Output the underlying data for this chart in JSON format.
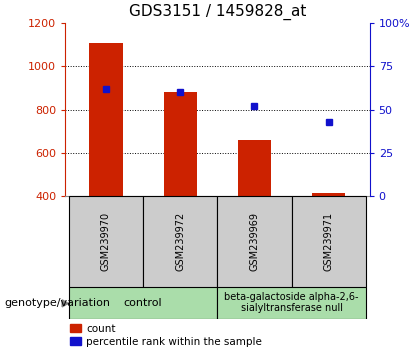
{
  "title": "GDS3151 / 1459828_at",
  "samples": [
    "GSM239970",
    "GSM239972",
    "GSM239969",
    "GSM239971"
  ],
  "counts": [
    1110,
    880,
    660,
    415
  ],
  "percentiles": [
    62,
    60,
    52,
    43
  ],
  "ylim_left": [
    400,
    1200
  ],
  "ylim_right": [
    0,
    100
  ],
  "yticks_left": [
    400,
    600,
    800,
    1000,
    1200
  ],
  "yticks_right": [
    0,
    25,
    50,
    75,
    100
  ],
  "bar_color": "#cc2200",
  "dot_color": "#1111cc",
  "bar_width": 0.45,
  "group1_label": "control",
  "group2_label": "beta-galactoside alpha-2,6-\nsialyltransferase null",
  "group_color": "#aaddaa",
  "group_label_prefix": "genotype/variation",
  "legend_count_label": "count",
  "legend_percentile_label": "percentile rank within the sample",
  "axis_label_color_left": "#cc2200",
  "axis_label_color_right": "#1111cc",
  "title_fontsize": 11,
  "tick_fontsize": 8,
  "sample_label_fontsize": 7,
  "group_fontsize": 7,
  "legend_fontsize": 7.5,
  "geno_label_fontsize": 8
}
